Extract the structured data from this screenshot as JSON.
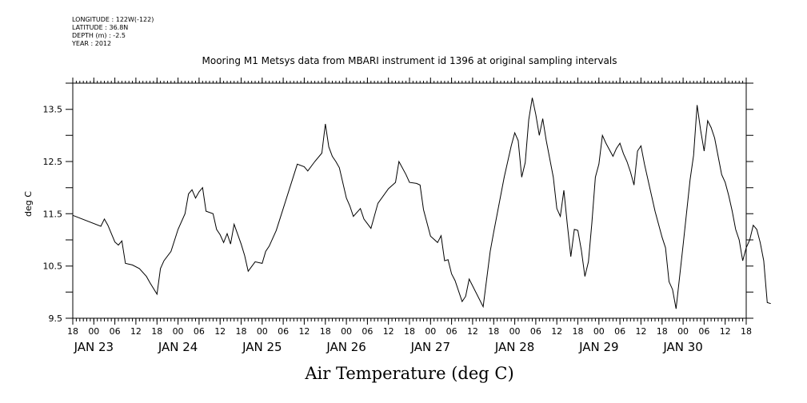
{
  "header": {
    "lines": [
      "LONGITUDE : 122W(-122)",
      "LATITUDE : 36.8N",
      "DEPTH (m) : -2.5",
      "YEAR : 2012"
    ]
  },
  "chart_data": {
    "type": "line",
    "title": "Mooring M1 Metsys data from MBARI instrument id 1396 at original sampling intervals",
    "xlabel": "Air Temperature (deg C)",
    "ylabel": "deg C",
    "xlim": [
      "2012-01-22T18:00",
      "2012-01-30T18:00"
    ],
    "ylim": [
      9.5,
      14.0
    ],
    "y_ticks": [
      9.5,
      10.5,
      11.5,
      12.5,
      13.5
    ],
    "y_tick_labels": [
      "9.5",
      "10.5",
      "11.5",
      "12.5",
      "13.5"
    ],
    "hour_labels": [
      "18",
      "00",
      "06",
      "12",
      "18",
      "00",
      "06",
      "12",
      "18",
      "00",
      "06",
      "12",
      "18",
      "00",
      "06",
      "12",
      "18",
      "00",
      "06",
      "12",
      "18",
      "00",
      "06",
      "12",
      "18",
      "00",
      "06",
      "12",
      "18",
      "00",
      "06",
      "12",
      "18"
    ],
    "day_labels": [
      {
        "text": "JAN 23",
        "at": "2012-01-23T00:00"
      },
      {
        "text": "JAN 24",
        "at": "2012-01-24T00:00"
      },
      {
        "text": "JAN 25",
        "at": "2012-01-25T00:00"
      },
      {
        "text": "JAN 26",
        "at": "2012-01-26T00:00"
      },
      {
        "text": "JAN 27",
        "at": "2012-01-27T00:00"
      },
      {
        "text": "JAN 28",
        "at": "2012-01-28T00:00"
      },
      {
        "text": "JAN 29",
        "at": "2012-01-29T00:00"
      },
      {
        "text": "JAN 30",
        "at": "2012-01-30T00:00"
      }
    ],
    "series": [
      {
        "color": "#000000",
        "points": [
          [
            "2012-01-22T18:00",
            11.47
          ],
          [
            "2012-01-23T02:00",
            11.26
          ],
          [
            "2012-01-23T03:00",
            11.4
          ],
          [
            "2012-01-23T04:00",
            11.28
          ],
          [
            "2012-01-23T06:00",
            10.96
          ],
          [
            "2012-01-23T07:00",
            10.9
          ],
          [
            "2012-01-23T08:00",
            10.98
          ],
          [
            "2012-01-23T09:00",
            10.55
          ],
          [
            "2012-01-23T11:00",
            10.52
          ],
          [
            "2012-01-23T13:00",
            10.45
          ],
          [
            "2012-01-23T15:00",
            10.3
          ],
          [
            "2012-01-23T16:00",
            10.18
          ],
          [
            "2012-01-23T18:00",
            9.96
          ],
          [
            "2012-01-23T19:00",
            10.45
          ],
          [
            "2012-01-23T20:00",
            10.6
          ],
          [
            "2012-01-23T22:00",
            10.78
          ],
          [
            "2012-01-24T00:00",
            11.2
          ],
          [
            "2012-01-24T02:00",
            11.5
          ],
          [
            "2012-01-24T03:00",
            11.88
          ],
          [
            "2012-01-24T04:00",
            11.96
          ],
          [
            "2012-01-24T05:00",
            11.8
          ],
          [
            "2012-01-24T06:00",
            11.92
          ],
          [
            "2012-01-24T07:00",
            12.0
          ],
          [
            "2012-01-24T08:00",
            11.55
          ],
          [
            "2012-01-24T10:00",
            11.5
          ],
          [
            "2012-01-24T11:00",
            11.2
          ],
          [
            "2012-01-24T12:00",
            11.1
          ],
          [
            "2012-01-24T13:00",
            10.95
          ],
          [
            "2012-01-24T14:00",
            11.12
          ],
          [
            "2012-01-24T15:00",
            10.92
          ],
          [
            "2012-01-24T16:00",
            11.3
          ],
          [
            "2012-01-24T18:00",
            10.92
          ],
          [
            "2012-01-24T19:00",
            10.7
          ],
          [
            "2012-01-24T20:00",
            10.4
          ],
          [
            "2012-01-24T22:00",
            10.58
          ],
          [
            "2012-01-25T00:00",
            10.55
          ],
          [
            "2012-01-25T01:00",
            10.78
          ],
          [
            "2012-01-25T02:00",
            10.88
          ],
          [
            "2012-01-25T04:00",
            11.18
          ],
          [
            "2012-01-25T06:00",
            11.6
          ],
          [
            "2012-01-25T10:00",
            12.45
          ],
          [
            "2012-01-25T12:00",
            12.4
          ],
          [
            "2012-01-25T13:00",
            12.32
          ],
          [
            "2012-01-25T15:00",
            12.5
          ],
          [
            "2012-01-25T17:00",
            12.66
          ],
          [
            "2012-01-25T18:00",
            13.22
          ],
          [
            "2012-01-25T19:00",
            12.78
          ],
          [
            "2012-01-25T20:00",
            12.6
          ],
          [
            "2012-01-25T21:00",
            12.5
          ],
          [
            "2012-01-25T22:00",
            12.38
          ],
          [
            "2012-01-26T00:00",
            11.8
          ],
          [
            "2012-01-26T01:00",
            11.65
          ],
          [
            "2012-01-26T02:00",
            11.45
          ],
          [
            "2012-01-26T04:00",
            11.6
          ],
          [
            "2012-01-26T05:00",
            11.4
          ],
          [
            "2012-01-26T07:00",
            11.22
          ],
          [
            "2012-01-26T09:00",
            11.7
          ],
          [
            "2012-01-26T12:00",
            11.98
          ],
          [
            "2012-01-26T14:00",
            12.1
          ],
          [
            "2012-01-26T15:00",
            12.5
          ],
          [
            "2012-01-26T17:00",
            12.25
          ],
          [
            "2012-01-26T18:00",
            12.1
          ],
          [
            "2012-01-26T20:00",
            12.08
          ],
          [
            "2012-01-26T21:00",
            12.05
          ],
          [
            "2012-01-26T22:00",
            11.58
          ],
          [
            "2012-01-27T00:00",
            11.07
          ],
          [
            "2012-01-27T02:00",
            10.95
          ],
          [
            "2012-01-27T03:00",
            11.08
          ],
          [
            "2012-01-27T04:00",
            10.6
          ],
          [
            "2012-01-27T05:00",
            10.62
          ],
          [
            "2012-01-27T06:00",
            10.35
          ],
          [
            "2012-01-27T07:00",
            10.22
          ],
          [
            "2012-01-27T09:00",
            9.82
          ],
          [
            "2012-01-27T10:00",
            9.92
          ],
          [
            "2012-01-27T11:00",
            10.25
          ],
          [
            "2012-01-27T15:00",
            9.72
          ],
          [
            "2012-01-27T17:00",
            10.78
          ],
          [
            "2012-01-27T18:00",
            11.15
          ],
          [
            "2012-01-27T21:00",
            12.2
          ],
          [
            "2012-01-27T23:00",
            12.8
          ],
          [
            "2012-01-28T00:00",
            13.05
          ],
          [
            "2012-01-28T01:00",
            12.9
          ],
          [
            "2012-01-28T02:00",
            12.2
          ],
          [
            "2012-01-28T03:00",
            12.48
          ],
          [
            "2012-01-28T04:00",
            13.3
          ],
          [
            "2012-01-28T05:00",
            13.72
          ],
          [
            "2012-01-28T06:00",
            13.4
          ],
          [
            "2012-01-28T07:00",
            13.0
          ],
          [
            "2012-01-28T08:00",
            13.32
          ],
          [
            "2012-01-28T09:00",
            12.9
          ],
          [
            "2012-01-28T10:00",
            12.55
          ],
          [
            "2012-01-28T11:00",
            12.2
          ],
          [
            "2012-01-28T12:00",
            11.6
          ],
          [
            "2012-01-28T13:00",
            11.45
          ],
          [
            "2012-01-28T14:00",
            11.95
          ],
          [
            "2012-01-28T15:00",
            11.3
          ],
          [
            "2012-01-28T16:00",
            10.68
          ],
          [
            "2012-01-28T17:00",
            11.2
          ],
          [
            "2012-01-28T18:00",
            11.18
          ],
          [
            "2012-01-28T19:00",
            10.8
          ],
          [
            "2012-01-28T20:00",
            10.3
          ],
          [
            "2012-01-28T21:00",
            10.58
          ],
          [
            "2012-01-28T22:00",
            11.32
          ],
          [
            "2012-01-28T23:00",
            12.2
          ],
          [
            "2012-01-29T00:00",
            12.45
          ],
          [
            "2012-01-29T01:00",
            13.0
          ],
          [
            "2012-01-29T02:00",
            12.85
          ],
          [
            "2012-01-29T04:00",
            12.6
          ],
          [
            "2012-01-29T05:00",
            12.75
          ],
          [
            "2012-01-29T06:00",
            12.85
          ],
          [
            "2012-01-29T07:00",
            12.65
          ],
          [
            "2012-01-29T08:00",
            12.5
          ],
          [
            "2012-01-29T09:00",
            12.3
          ],
          [
            "2012-01-29T10:00",
            12.05
          ],
          [
            "2012-01-29T11:00",
            12.7
          ],
          [
            "2012-01-29T12:00",
            12.8
          ],
          [
            "2012-01-29T13:00",
            12.45
          ],
          [
            "2012-01-29T16:00",
            11.55
          ],
          [
            "2012-01-29T18:00",
            11.05
          ],
          [
            "2012-01-29T19:00",
            10.85
          ],
          [
            "2012-01-29T20:00",
            10.2
          ],
          [
            "2012-01-29T21:00",
            10.05
          ],
          [
            "2012-01-29T22:00",
            9.68
          ],
          [
            "2012-01-30T00:00",
            10.9
          ],
          [
            "2012-01-30T02:00",
            12.15
          ],
          [
            "2012-01-30T03:00",
            12.62
          ],
          [
            "2012-01-30T04:00",
            13.58
          ],
          [
            "2012-01-30T05:00",
            13.1
          ],
          [
            "2012-01-30T06:00",
            12.7
          ],
          [
            "2012-01-30T07:00",
            13.28
          ],
          [
            "2012-01-30T08:00",
            13.15
          ],
          [
            "2012-01-30T09:00",
            12.95
          ],
          [
            "2012-01-30T10:00",
            12.6
          ],
          [
            "2012-01-30T11:00",
            12.25
          ],
          [
            "2012-01-30T12:00",
            12.1
          ],
          [
            "2012-01-30T13:00",
            11.85
          ],
          [
            "2012-01-30T14:00",
            11.55
          ],
          [
            "2012-01-30T15:00",
            11.2
          ],
          [
            "2012-01-30T16:00",
            11.0
          ],
          [
            "2012-01-30T17:00",
            10.6
          ],
          [
            "2012-01-30T18:00",
            10.85
          ],
          [
            "2012-01-30T19:00",
            11.0
          ],
          [
            "2012-01-30T20:00",
            11.28
          ],
          [
            "2012-01-30T21:00",
            11.2
          ],
          [
            "2012-01-30T22:00",
            10.95
          ],
          [
            "2012-01-30T23:00",
            10.6
          ],
          [
            "2012-01-31T00:00",
            9.8
          ],
          [
            "2012-01-31T01:00",
            9.78
          ]
        ]
      }
    ]
  }
}
